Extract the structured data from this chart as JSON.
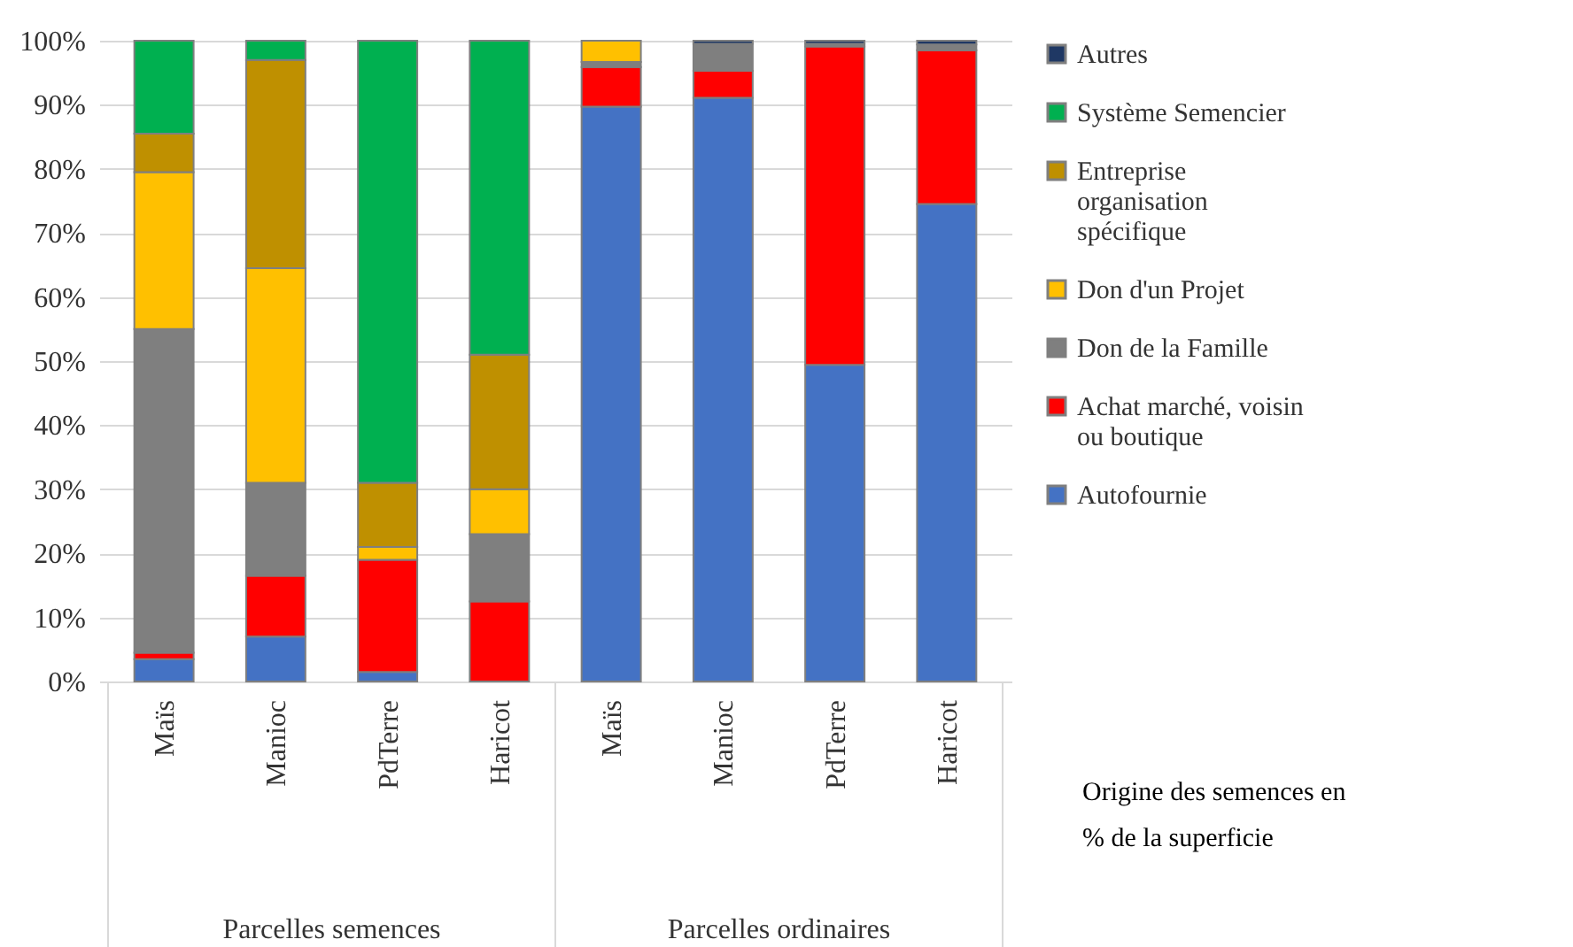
{
  "chart_data": {
    "type": "bar",
    "stacked": true,
    "categories": [
      "Maïs",
      "Manioc",
      "PdTerre",
      "Haricot",
      "Maïs",
      "Manioc",
      "PdTerre",
      "Haricot"
    ],
    "series": [
      {
        "name": "Autofournie",
        "color": "#4472c4",
        "values": [
          3.5,
          7,
          1.5,
          0,
          89.7,
          91.1,
          49.4,
          74.5
        ]
      },
      {
        "name": "Achat marché, voisin ou boutique",
        "color": "#ff0000",
        "values": [
          1,
          9.5,
          17.5,
          12.5,
          6.2,
          4.2,
          49.7,
          24
        ]
      },
      {
        "name": "Don de la Famille",
        "color": "#7f7f7f",
        "values": [
          50.5,
          14.5,
          0,
          10.5,
          0.8,
          4.2,
          0.4,
          0.9
        ]
      },
      {
        "name": "Don d'un Projet",
        "color": "#ffc000",
        "values": [
          24.5,
          33.5,
          2,
          7,
          3.3,
          0,
          0,
          0
        ]
      },
      {
        "name": "Entreprise organisation spécifique",
        "color": "#bf9000",
        "values": [
          6,
          32.5,
          10,
          21,
          0,
          0,
          0,
          0
        ]
      },
      {
        "name": "Système Semencier",
        "color": "#00b050",
        "values": [
          14.5,
          3,
          69,
          49,
          0,
          0,
          0,
          0
        ]
      },
      {
        "name": "Autres",
        "color": "#1f3864",
        "values": [
          0,
          0,
          0,
          0,
          0,
          0.5,
          0.5,
          0.6
        ]
      }
    ],
    "ylim": [
      0,
      100
    ],
    "yticks": [
      {
        "value": 0,
        "label": "0%"
      },
      {
        "value": 10,
        "label": "10%"
      },
      {
        "value": 20,
        "label": "20%"
      },
      {
        "value": 30,
        "label": "30%"
      },
      {
        "value": 40,
        "label": "40%"
      },
      {
        "value": 50,
        "label": "50%"
      },
      {
        "value": 60,
        "label": "60%"
      },
      {
        "value": 70,
        "label": "70%"
      },
      {
        "value": 80,
        "label": "80%"
      },
      {
        "value": 90,
        "label": "90%"
      },
      {
        "value": 100,
        "label": "100%"
      }
    ],
    "grid": "y",
    "legend": "right",
    "annotations": [
      "Parcelles semences",
      "Parcelles ordinaires",
      "Origine des semences en % de la superficie"
    ]
  }
}
